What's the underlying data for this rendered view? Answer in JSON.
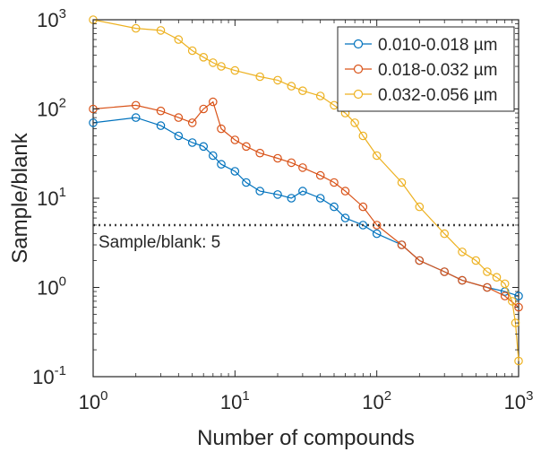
{
  "chart_data": {
    "type": "line",
    "xlabel": "Number of compounds",
    "ylabel": "Sample/blank",
    "xscale": "log",
    "yscale": "log",
    "xlim": [
      1,
      1000
    ],
    "ylim": [
      0.1,
      1000
    ],
    "x_ticks": [
      {
        "base": "10",
        "exp": "0"
      },
      {
        "base": "10",
        "exp": "1"
      },
      {
        "base": "10",
        "exp": "2"
      },
      {
        "base": "10",
        "exp": "3"
      }
    ],
    "y_ticks": [
      {
        "base": "10",
        "exp": "-1"
      },
      {
        "base": "10",
        "exp": "0"
      },
      {
        "base": "10",
        "exp": "1"
      },
      {
        "base": "10",
        "exp": "2"
      },
      {
        "base": "10",
        "exp": "3"
      }
    ],
    "grid": false,
    "legend_position": "top-right",
    "marker": "open-circle",
    "threshold": {
      "value": 5,
      "label": "Sample/blank: 5",
      "style": "dotted",
      "color": "#404040"
    },
    "series": [
      {
        "name": "0.010-0.018 µm",
        "color": "#0072BD",
        "points": [
          [
            1,
            70
          ],
          [
            2,
            80
          ],
          [
            3,
            65
          ],
          [
            4,
            50
          ],
          [
            5,
            42
          ],
          [
            6,
            38
          ],
          [
            7,
            30
          ],
          [
            8,
            24
          ],
          [
            10,
            20
          ],
          [
            12,
            15
          ],
          [
            15,
            12
          ],
          [
            20,
            11
          ],
          [
            25,
            10
          ],
          [
            30,
            12
          ],
          [
            40,
            10
          ],
          [
            50,
            8
          ],
          [
            60,
            6
          ],
          [
            80,
            5
          ],
          [
            100,
            4
          ],
          [
            150,
            3
          ],
          [
            200,
            2
          ],
          [
            300,
            1.5
          ],
          [
            400,
            1.2
          ],
          [
            600,
            1.0
          ],
          [
            800,
            0.9
          ],
          [
            1000,
            0.8
          ]
        ]
      },
      {
        "name": "0.018-0.032 µm",
        "color": "#D95319",
        "points": [
          [
            1,
            100
          ],
          [
            2,
            110
          ],
          [
            3,
            95
          ],
          [
            4,
            80
          ],
          [
            5,
            70
          ],
          [
            6,
            100
          ],
          [
            7,
            120
          ],
          [
            8,
            60
          ],
          [
            10,
            45
          ],
          [
            12,
            38
          ],
          [
            15,
            32
          ],
          [
            20,
            28
          ],
          [
            25,
            25
          ],
          [
            30,
            22
          ],
          [
            40,
            18
          ],
          [
            50,
            15
          ],
          [
            60,
            12
          ],
          [
            80,
            8
          ],
          [
            100,
            5
          ],
          [
            150,
            3
          ],
          [
            200,
            2
          ],
          [
            300,
            1.5
          ],
          [
            400,
            1.2
          ],
          [
            600,
            1.0
          ],
          [
            800,
            0.8
          ],
          [
            1000,
            0.6
          ]
        ]
      },
      {
        "name": "0.032-0.056 µm",
        "color": "#EDB120",
        "points": [
          [
            1,
            1000
          ],
          [
            2,
            800
          ],
          [
            3,
            760
          ],
          [
            4,
            600
          ],
          [
            5,
            450
          ],
          [
            6,
            380
          ],
          [
            7,
            330
          ],
          [
            8,
            300
          ],
          [
            10,
            270
          ],
          [
            15,
            230
          ],
          [
            20,
            210
          ],
          [
            25,
            180
          ],
          [
            30,
            160
          ],
          [
            40,
            140
          ],
          [
            50,
            110
          ],
          [
            60,
            90
          ],
          [
            70,
            70
          ],
          [
            80,
            50
          ],
          [
            100,
            30
          ],
          [
            150,
            15
          ],
          [
            200,
            8
          ],
          [
            300,
            4
          ],
          [
            400,
            2.5
          ],
          [
            500,
            2.0
          ],
          [
            600,
            1.5
          ],
          [
            700,
            1.3
          ],
          [
            800,
            1.1
          ],
          [
            900,
            0.7
          ],
          [
            950,
            0.4
          ],
          [
            1000,
            0.15
          ]
        ]
      }
    ]
  }
}
